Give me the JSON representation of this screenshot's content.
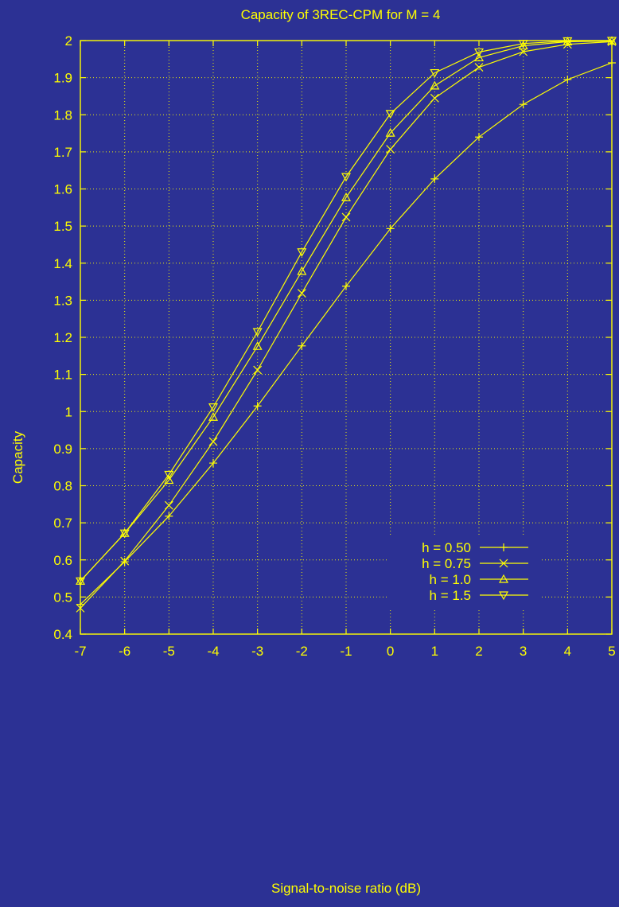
{
  "chart_data": {
    "type": "line",
    "title": "Capacity of 3REC-CPM for M = 4",
    "xlabel": "Signal-to-noise ratio (dB)",
    "ylabel": "Capacity",
    "x": [
      -7,
      -6,
      -5,
      -4,
      -3,
      -2,
      -1,
      0,
      1,
      2,
      3,
      4,
      5
    ],
    "xlim": [
      -7,
      5
    ],
    "ylim": [
      0.4,
      2.0
    ],
    "xticks": [
      -7,
      -6,
      -5,
      -4,
      -3,
      -2,
      -1,
      0,
      1,
      2,
      3,
      4,
      5
    ],
    "yticks": [
      0.4,
      0.5,
      0.6,
      0.7,
      0.8,
      0.9,
      1.0,
      1.1,
      1.2,
      1.3,
      1.4,
      1.5,
      1.6,
      1.7,
      1.8,
      1.9,
      2.0
    ],
    "ytick_labels": [
      "0.4",
      "0.5",
      "0.6",
      "0.7",
      "0.8",
      "0.9",
      "1",
      "1.1",
      "1.2",
      "1.3",
      "1.4",
      "1.5",
      "1.6",
      "1.7",
      "1.8",
      "1.9",
      "2"
    ],
    "xtick_labels": [
      "-7",
      "-6",
      "-5",
      "-4",
      "-3",
      "-2",
      "-1",
      "0",
      "1",
      "2",
      "3",
      "4",
      "5"
    ],
    "grid": true,
    "legend_position": "right-middle",
    "colors": {
      "background": "#2c3194",
      "foreground": "#ffff00",
      "legend_background": "#2c3194"
    },
    "series": [
      {
        "name": "h = 0.50",
        "marker": "plus",
        "values": [
          0.48,
          0.595,
          0.718,
          0.861,
          1.015,
          1.177,
          1.338,
          1.493,
          1.627,
          1.74,
          1.828,
          1.895,
          1.94
        ]
      },
      {
        "name": "h = 0.75",
        "marker": "cross",
        "values": [
          0.47,
          0.597,
          0.747,
          0.919,
          1.112,
          1.319,
          1.524,
          1.707,
          1.845,
          1.928,
          1.97,
          1.99,
          1.997
        ]
      },
      {
        "name": "h = 1.0",
        "marker": "triangle-up",
        "values": [
          0.543,
          0.672,
          0.815,
          0.985,
          1.176,
          1.378,
          1.577,
          1.751,
          1.878,
          1.954,
          1.986,
          1.997,
          1.999
        ]
      },
      {
        "name": "h = 1.5",
        "marker": "triangle-down",
        "values": [
          0.543,
          0.672,
          0.83,
          1.012,
          1.215,
          1.43,
          1.633,
          1.803,
          1.913,
          1.969,
          1.992,
          1.999,
          2.0
        ]
      }
    ]
  }
}
